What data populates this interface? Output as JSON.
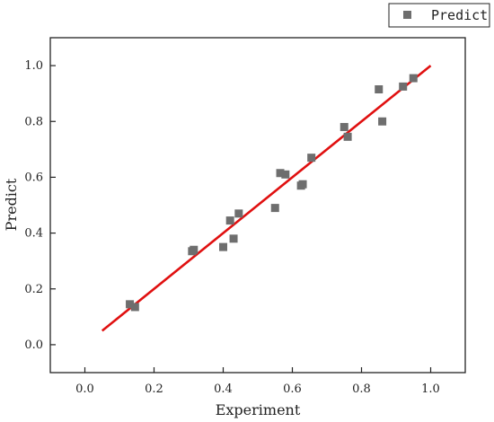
{
  "chart_data": {
    "type": "scatter",
    "xlabel": "Experiment",
    "ylabel": "Predict",
    "xlim": [
      -0.1,
      1.1
    ],
    "ylim": [
      -0.1,
      1.1
    ],
    "x_ticks": [
      "0.0",
      "0.2",
      "0.4",
      "0.6",
      "0.8",
      "1.0"
    ],
    "y_ticks": [
      "0.0",
      "0.2",
      "0.4",
      "0.6",
      "0.8",
      "1.0"
    ],
    "grid": false,
    "legend": {
      "placement": "top-right-outside",
      "entries": [
        "Predict"
      ]
    },
    "series": [
      {
        "name": "Predict",
        "marker": "square",
        "color": "#6e6e6e",
        "x": [
          0.13,
          0.145,
          0.31,
          0.315,
          0.4,
          0.42,
          0.43,
          0.445,
          0.55,
          0.565,
          0.58,
          0.625,
          0.63,
          0.655,
          0.75,
          0.76,
          0.85,
          0.86,
          0.92,
          0.95
        ],
        "y": [
          0.145,
          0.135,
          0.335,
          0.34,
          0.35,
          0.445,
          0.38,
          0.47,
          0.49,
          0.615,
          0.61,
          0.57,
          0.575,
          0.67,
          0.78,
          0.745,
          0.915,
          0.8,
          0.925,
          0.955
        ]
      }
    ],
    "fit_line": {
      "x": [
        0.05,
        1.0
      ],
      "y": [
        0.05,
        1.0
      ],
      "color": "#e01010"
    }
  }
}
